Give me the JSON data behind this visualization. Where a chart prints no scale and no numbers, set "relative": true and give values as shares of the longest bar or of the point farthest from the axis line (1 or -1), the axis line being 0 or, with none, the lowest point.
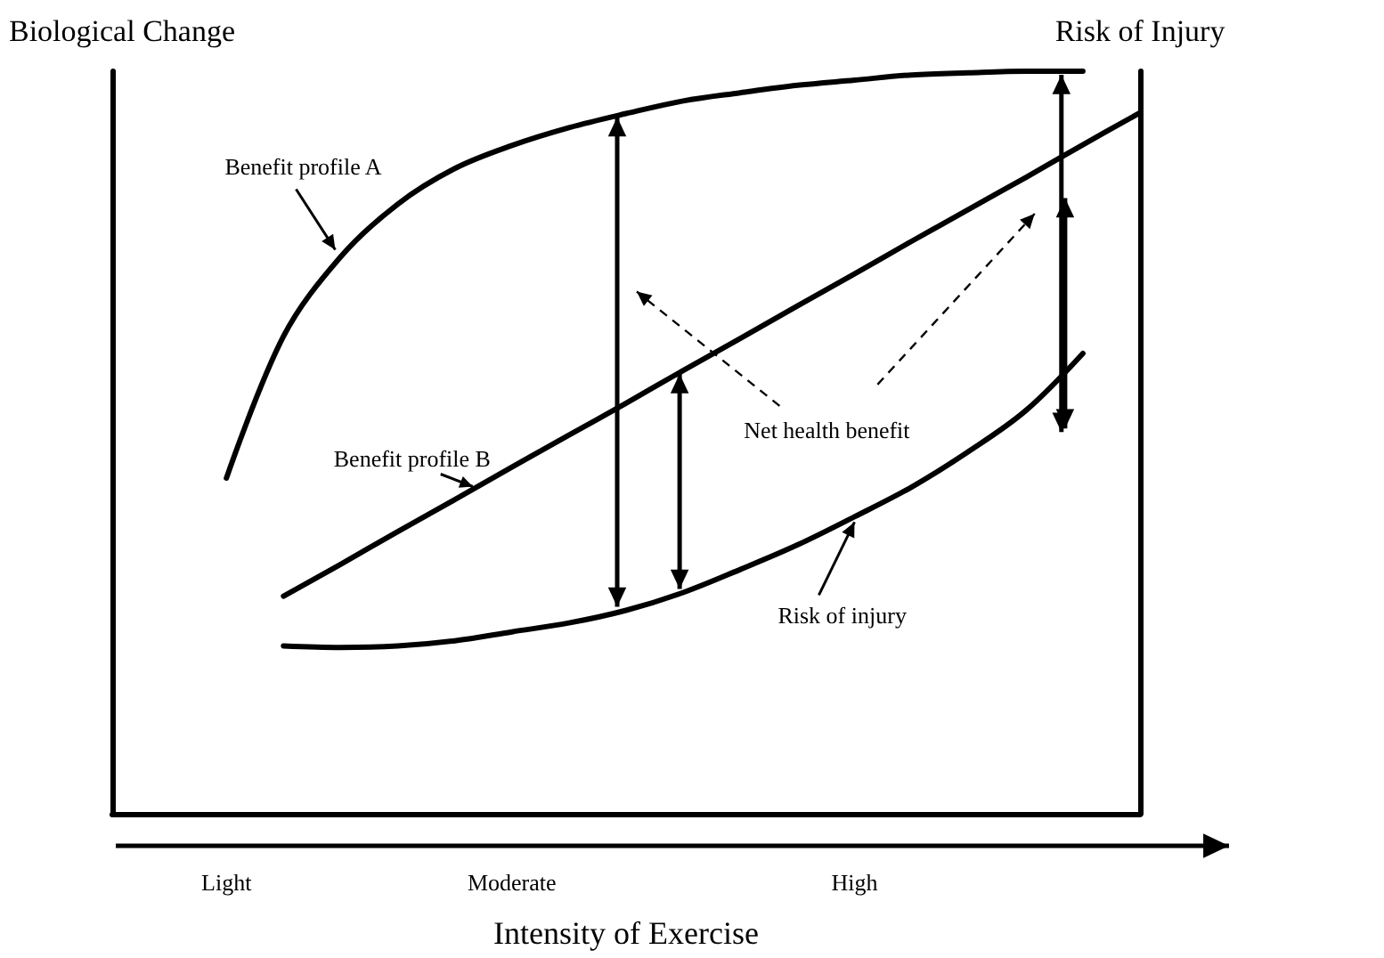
{
  "chart_data": {
    "type": "line",
    "xlabel": "Intensity of Exercise",
    "ylabel": "Biological Change",
    "y2label": "Risk of Injury",
    "relative": true,
    "legend": false,
    "grid": false,
    "categories": [
      null,
      null,
      "Light",
      null,
      null,
      null,
      null,
      "Moderate",
      null,
      null,
      null,
      null,
      null,
      "High",
      null,
      null,
      null,
      null,
      null
    ],
    "series": [
      {
        "name": "Benefit profile A",
        "color": "#000000",
        "values": [
          null,
          null,
          0.452,
          0.643,
          0.75,
          0.821,
          0.869,
          0.9,
          0.924,
          0.943,
          0.96,
          0.971,
          0.981,
          0.988,
          0.995,
          0.998,
          1,
          1,
          null
        ]
      },
      {
        "name": "Benefit profile B",
        "color": "#000000",
        "values": [
          null,
          null,
          null,
          0.293,
          0.336,
          0.38,
          0.423,
          0.467,
          0.51,
          0.553,
          0.597,
          0.64,
          0.684,
          0.727,
          0.771,
          0.814,
          0.857,
          0.901,
          0.944
        ]
      },
      {
        "name": "Risk of injury",
        "color": "#000000",
        "values": [
          null,
          null,
          null,
          0.226,
          0.224,
          0.226,
          0.233,
          0.245,
          0.257,
          0.274,
          0.298,
          0.329,
          0.362,
          0.4,
          0.44,
          0.488,
          0.543,
          0.62,
          null
        ]
      }
    ],
    "annotations": [
      "Net health benefit"
    ]
  }
}
